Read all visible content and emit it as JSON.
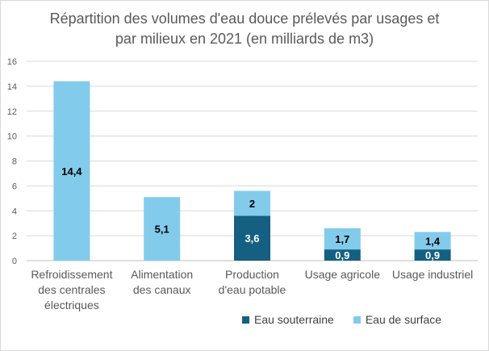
{
  "chart_data": {
    "type": "bar",
    "stacked": true,
    "title": [
      "Répartition des volumes d'eau douce prélevés par usages et",
      "par milieux en 2021 (en milliards de m3)"
    ],
    "categories": [
      [
        "Refroidissement",
        "des centrales",
        "électriques"
      ],
      [
        "Alimentation",
        "des canaux"
      ],
      [
        "Production",
        "d'eau potable"
      ],
      [
        "Usage agricole"
      ],
      [
        "Usage industriel"
      ]
    ],
    "series": [
      {
        "name": "Eau souterraine",
        "color": "#156082",
        "label_color": "#ffffff",
        "values": [
          0,
          0,
          3.6,
          0.9,
          0.9
        ],
        "labels": [
          "",
          "",
          "3,6",
          "0,9",
          "0,9"
        ]
      },
      {
        "name": "Eau de surface",
        "color": "#83cbeb",
        "label_color": "#000000",
        "values": [
          14.4,
          5.1,
          2,
          1.7,
          1.4
        ],
        "labels": [
          "14,4",
          "5,1",
          "2",
          "1,7",
          "1,4"
        ]
      }
    ],
    "ylim": [
      0,
      16
    ],
    "yticks": [
      "0",
      "2",
      "4",
      "6",
      "8",
      "10",
      "12",
      "14",
      "16"
    ],
    "grid": true,
    "legend_position": "bottom-right"
  }
}
